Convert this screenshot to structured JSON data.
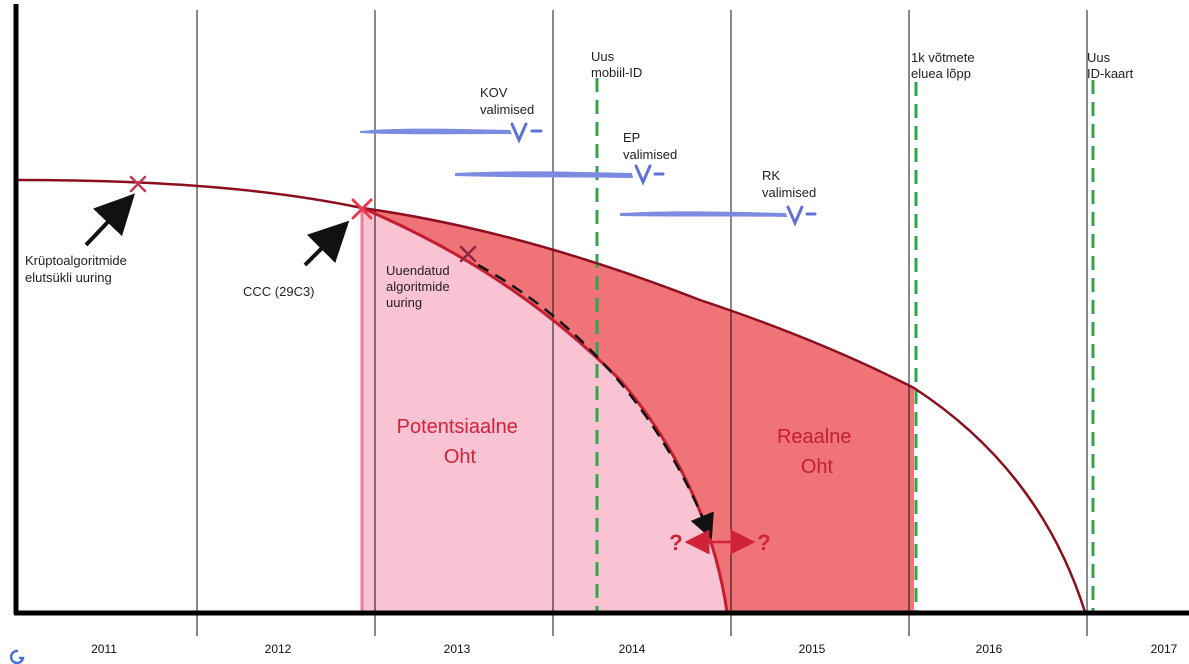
{
  "years": [
    "2011",
    "2012",
    "2013",
    "2014",
    "2015",
    "2016",
    "2017"
  ],
  "milestones": {
    "mobile_id": [
      "Uus",
      "mobiil-ID"
    ],
    "key_lifetime": [
      "1k võtmete",
      "eluea lõpp"
    ],
    "new_id_card": [
      "Uus",
      "ID-kaart"
    ]
  },
  "elections": {
    "kov": [
      "KOV",
      "valimised"
    ],
    "ep": [
      "EP",
      "valimised"
    ],
    "rk": [
      "RK",
      "valimised"
    ]
  },
  "events": {
    "lifecycle_study": [
      "Krüptoalgoritmide",
      "elutsükli uuring"
    ],
    "ccc": [
      "CCC (29C3)"
    ],
    "updated_study": [
      "Uuendatud",
      "algoritmide",
      "uuring"
    ]
  },
  "zones": {
    "potential": [
      "Potentsiaalne",
      "Oht"
    ],
    "real": [
      "Reaalne",
      "Oht"
    ]
  },
  "question_mark": "?",
  "colors": {
    "curve": "#8b0f1e",
    "potential_fill": "#f9c3d3",
    "real_fill": "#f07378",
    "milestone": "#2fa64a",
    "election_brush": "#7b8be0",
    "zone_text": "#d0233a"
  },
  "icons": {
    "logo": "G-logo-icon",
    "cross": "cross-mark-icon"
  }
}
